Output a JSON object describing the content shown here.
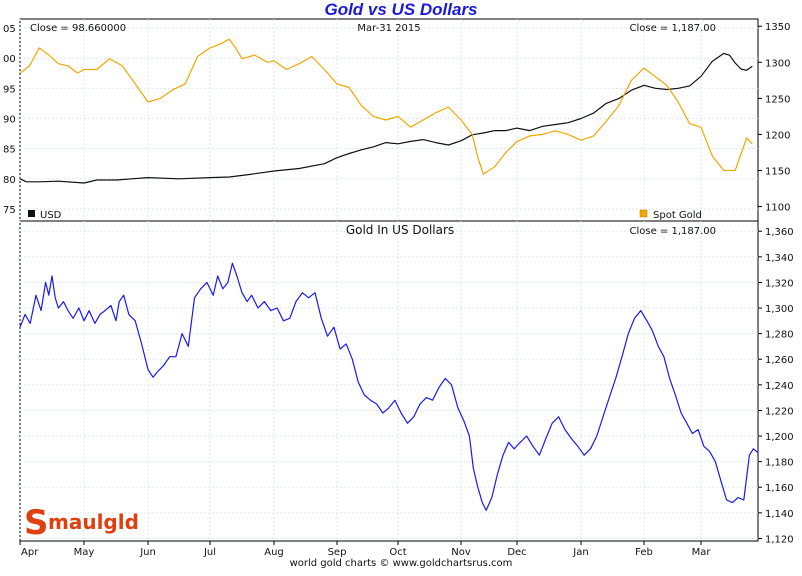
{
  "chart_data": [
    {
      "type": "line",
      "title": "Gold vs US Dollars",
      "header": {
        "left": "Close = 98.660000",
        "center": "Mar-31  2015",
        "right": "Close = 1,187.00"
      },
      "legend": [
        {
          "name": "USD",
          "color": "#111111",
          "position": "bottom-left"
        },
        {
          "name": "Spot Gold",
          "color": "#f0a800",
          "position": "bottom-right"
        }
      ],
      "y_left": {
        "ticks": [
          "05",
          "00",
          "95",
          "90",
          "85",
          "80",
          "75"
        ],
        "values": [
          105,
          100,
          95,
          90,
          85,
          80,
          75
        ],
        "range": [
          73,
          106.5
        ]
      },
      "y_right": {
        "ticks": [
          "1350",
          "1300",
          "1250",
          "1200",
          "1150",
          "1100"
        ],
        "values": [
          1350,
          1300,
          1250,
          1200,
          1150,
          1100
        ],
        "range": [
          1080,
          1360
        ]
      },
      "x_ticks": [
        "Apr",
        "May",
        "Jun",
        "Jul",
        "Aug",
        "Sep",
        "Oct",
        "Nov",
        "Dec",
        "Jan",
        "Feb",
        "Mar"
      ],
      "series": [
        {
          "name": "USD",
          "axis": "left",
          "color": "#111111",
          "points": [
            [
              0,
              80
            ],
            [
              0.1,
              79.5
            ],
            [
              0.3,
              79.5
            ],
            [
              0.6,
              79.6
            ],
            [
              1.0,
              79.3
            ],
            [
              1.2,
              79.8
            ],
            [
              1.5,
              79.8
            ],
            [
              2.0,
              80.2
            ],
            [
              2.5,
              80.0
            ],
            [
              3.0,
              80.2
            ],
            [
              3.3,
              80.3
            ],
            [
              3.6,
              80.7
            ],
            [
              4.0,
              81.3
            ],
            [
              4.4,
              81.7
            ],
            [
              4.8,
              82.5
            ],
            [
              5.0,
              83.5
            ],
            [
              5.2,
              84.2
            ],
            [
              5.4,
              84.8
            ],
            [
              5.6,
              85.3
            ],
            [
              5.8,
              86.0
            ],
            [
              6.0,
              85.8
            ],
            [
              6.2,
              86.2
            ],
            [
              6.4,
              86.5
            ],
            [
              6.6,
              86.0
            ],
            [
              6.8,
              85.6
            ],
            [
              7.0,
              86.3
            ],
            [
              7.2,
              87.3
            ],
            [
              7.4,
              87.6
            ],
            [
              7.6,
              88.0
            ],
            [
              7.8,
              88.0
            ],
            [
              8.0,
              88.4
            ],
            [
              8.2,
              88.0
            ],
            [
              8.4,
              88.7
            ],
            [
              8.6,
              89.0
            ],
            [
              8.8,
              89.3
            ],
            [
              9.0,
              90.0
            ],
            [
              9.2,
              90.9
            ],
            [
              9.4,
              92.5
            ],
            [
              9.6,
              93.3
            ],
            [
              9.8,
              94.7
            ],
            [
              10.0,
              95.5
            ],
            [
              10.2,
              95.0
            ],
            [
              10.4,
              94.8
            ],
            [
              10.6,
              95.0
            ],
            [
              10.8,
              95.4
            ],
            [
              11.0,
              97.0
            ],
            [
              11.2,
              99.5
            ],
            [
              11.4,
              100.8
            ],
            [
              11.5,
              100.5
            ],
            [
              11.6,
              99.2
            ],
            [
              11.7,
              98.2
            ],
            [
              11.8,
              98.0
            ],
            [
              11.9,
              98.66
            ]
          ]
        },
        {
          "name": "Spot Gold",
          "axis": "right",
          "color": "#f0a800",
          "points": [
            [
              0,
              1285
            ],
            [
              0.15,
              1295
            ],
            [
              0.3,
              1320
            ],
            [
              0.45,
              1310
            ],
            [
              0.6,
              1298
            ],
            [
              0.75,
              1295
            ],
            [
              0.9,
              1285
            ],
            [
              1.0,
              1290
            ],
            [
              1.2,
              1290
            ],
            [
              1.4,
              1305
            ],
            [
              1.6,
              1295
            ],
            [
              1.8,
              1270
            ],
            [
              2.0,
              1245
            ],
            [
              2.2,
              1250
            ],
            [
              2.4,
              1262
            ],
            [
              2.6,
              1270
            ],
            [
              2.8,
              1308
            ],
            [
              3.0,
              1320
            ],
            [
              3.15,
              1325
            ],
            [
              3.3,
              1332
            ],
            [
              3.4,
              1320
            ],
            [
              3.5,
              1305
            ],
            [
              3.7,
              1310
            ],
            [
              3.9,
              1300
            ],
            [
              4.0,
              1302
            ],
            [
              4.2,
              1290
            ],
            [
              4.4,
              1298
            ],
            [
              4.6,
              1308
            ],
            [
              4.8,
              1290
            ],
            [
              5.0,
              1270
            ],
            [
              5.2,
              1265
            ],
            [
              5.4,
              1240
            ],
            [
              5.6,
              1225
            ],
            [
              5.8,
              1220
            ],
            [
              6.0,
              1225
            ],
            [
              6.2,
              1210
            ],
            [
              6.4,
              1220
            ],
            [
              6.6,
              1230
            ],
            [
              6.8,
              1238
            ],
            [
              7.0,
              1220
            ],
            [
              7.2,
              1200
            ],
            [
              7.3,
              1168
            ],
            [
              7.4,
              1145
            ],
            [
              7.6,
              1155
            ],
            [
              7.8,
              1175
            ],
            [
              8.0,
              1190
            ],
            [
              8.2,
              1198
            ],
            [
              8.4,
              1200
            ],
            [
              8.6,
              1205
            ],
            [
              8.8,
              1200
            ],
            [
              9.0,
              1192
            ],
            [
              9.2,
              1198
            ],
            [
              9.4,
              1218
            ],
            [
              9.6,
              1240
            ],
            [
              9.8,
              1275
            ],
            [
              10.0,
              1292
            ],
            [
              10.2,
              1280
            ],
            [
              10.4,
              1268
            ],
            [
              10.6,
              1245
            ],
            [
              10.8,
              1215
            ],
            [
              11.0,
              1210
            ],
            [
              11.2,
              1170
            ],
            [
              11.4,
              1150
            ],
            [
              11.6,
              1150
            ],
            [
              11.8,
              1195
            ],
            [
              11.9,
              1187
            ]
          ]
        }
      ]
    },
    {
      "type": "line",
      "title": "Gold In US Dollars",
      "header": {
        "right": "Close = 1,187.00"
      },
      "y_right": {
        "ticks": [
          "1,360",
          "1,340",
          "1,320",
          "1,300",
          "1,280",
          "1,260",
          "1,240",
          "1,220",
          "1,200",
          "1,180",
          "1,160",
          "1,140",
          "1,120"
        ],
        "values": [
          1360,
          1340,
          1320,
          1300,
          1280,
          1260,
          1240,
          1220,
          1200,
          1180,
          1160,
          1140,
          1120
        ],
        "range": [
          1118,
          1368
        ]
      },
      "x_ticks": [
        "Apr",
        "May",
        "Jun",
        "Jul",
        "Aug",
        "Sep",
        "Oct",
        "Nov",
        "Dec",
        "Jan",
        "Feb",
        "Mar"
      ],
      "series": [
        {
          "name": "Gold",
          "color": "#1a1aee",
          "points": [
            [
              0,
              1285
            ],
            [
              0.08,
              1295
            ],
            [
              0.16,
              1288
            ],
            [
              0.25,
              1310
            ],
            [
              0.33,
              1298
            ],
            [
              0.4,
              1320
            ],
            [
              0.45,
              1310
            ],
            [
              0.5,
              1325
            ],
            [
              0.55,
              1308
            ],
            [
              0.6,
              1300
            ],
            [
              0.68,
              1305
            ],
            [
              0.75,
              1298
            ],
            [
              0.83,
              1292
            ],
            [
              0.92,
              1300
            ],
            [
              1.0,
              1290
            ],
            [
              1.08,
              1298
            ],
            [
              1.17,
              1288
            ],
            [
              1.25,
              1295
            ],
            [
              1.33,
              1298
            ],
            [
              1.42,
              1302
            ],
            [
              1.5,
              1290
            ],
            [
              1.55,
              1305
            ],
            [
              1.62,
              1310
            ],
            [
              1.7,
              1295
            ],
            [
              1.8,
              1290
            ],
            [
              1.9,
              1272
            ],
            [
              2.0,
              1252
            ],
            [
              2.08,
              1246
            ],
            [
              2.15,
              1250
            ],
            [
              2.25,
              1255
            ],
            [
              2.35,
              1262
            ],
            [
              2.45,
              1262
            ],
            [
              2.55,
              1280
            ],
            [
              2.65,
              1270
            ],
            [
              2.75,
              1308
            ],
            [
              2.85,
              1315
            ],
            [
              2.95,
              1320
            ],
            [
              3.05,
              1310
            ],
            [
              3.12,
              1325
            ],
            [
              3.2,
              1315
            ],
            [
              3.28,
              1320
            ],
            [
              3.35,
              1335
            ],
            [
              3.42,
              1325
            ],
            [
              3.5,
              1312
            ],
            [
              3.58,
              1305
            ],
            [
              3.65,
              1310
            ],
            [
              3.75,
              1300
            ],
            [
              3.85,
              1305
            ],
            [
              3.95,
              1298
            ],
            [
              4.05,
              1300
            ],
            [
              4.15,
              1290
            ],
            [
              4.25,
              1292
            ],
            [
              4.35,
              1305
            ],
            [
              4.45,
              1312
            ],
            [
              4.55,
              1308
            ],
            [
              4.65,
              1312
            ],
            [
              4.75,
              1292
            ],
            [
              4.85,
              1278
            ],
            [
              4.95,
              1285
            ],
            [
              5.05,
              1268
            ],
            [
              5.15,
              1272
            ],
            [
              5.25,
              1260
            ],
            [
              5.35,
              1242
            ],
            [
              5.45,
              1232
            ],
            [
              5.55,
              1228
            ],
            [
              5.65,
              1225
            ],
            [
              5.75,
              1218
            ],
            [
              5.85,
              1222
            ],
            [
              5.95,
              1228
            ],
            [
              6.05,
              1218
            ],
            [
              6.15,
              1210
            ],
            [
              6.25,
              1215
            ],
            [
              6.35,
              1225
            ],
            [
              6.45,
              1230
            ],
            [
              6.55,
              1228
            ],
            [
              6.65,
              1238
            ],
            [
              6.75,
              1245
            ],
            [
              6.85,
              1240
            ],
            [
              6.95,
              1222
            ],
            [
              7.05,
              1212
            ],
            [
              7.15,
              1200
            ],
            [
              7.22,
              1175
            ],
            [
              7.3,
              1160
            ],
            [
              7.38,
              1148
            ],
            [
              7.45,
              1142
            ],
            [
              7.55,
              1152
            ],
            [
              7.65,
              1170
            ],
            [
              7.75,
              1185
            ],
            [
              7.85,
              1195
            ],
            [
              7.95,
              1190
            ],
            [
              8.05,
              1195
            ],
            [
              8.15,
              1200
            ],
            [
              8.25,
              1192
            ],
            [
              8.35,
              1185
            ],
            [
              8.45,
              1198
            ],
            [
              8.55,
              1210
            ],
            [
              8.65,
              1215
            ],
            [
              8.75,
              1205
            ],
            [
              8.85,
              1198
            ],
            [
              8.95,
              1192
            ],
            [
              9.05,
              1185
            ],
            [
              9.15,
              1190
            ],
            [
              9.25,
              1200
            ],
            [
              9.35,
              1215
            ],
            [
              9.45,
              1230
            ],
            [
              9.55,
              1245
            ],
            [
              9.65,
              1262
            ],
            [
              9.75,
              1280
            ],
            [
              9.85,
              1292
            ],
            [
              9.95,
              1298
            ],
            [
              10.05,
              1290
            ],
            [
              10.15,
              1282
            ],
            [
              10.25,
              1270
            ],
            [
              10.35,
              1262
            ],
            [
              10.45,
              1245
            ],
            [
              10.55,
              1232
            ],
            [
              10.65,
              1218
            ],
            [
              10.75,
              1210
            ],
            [
              10.85,
              1202
            ],
            [
              10.95,
              1205
            ],
            [
              11.05,
              1192
            ],
            [
              11.15,
              1188
            ],
            [
              11.25,
              1180
            ],
            [
              11.35,
              1165
            ],
            [
              11.45,
              1150
            ],
            [
              11.55,
              1148
            ],
            [
              11.65,
              1152
            ],
            [
              11.75,
              1150
            ],
            [
              11.85,
              1185
            ],
            [
              11.92,
              1190
            ],
            [
              12.0,
              1187
            ]
          ]
        }
      ]
    }
  ],
  "footer": "world gold charts © www.goldchartsrus.com",
  "logo": "Smaulgld"
}
